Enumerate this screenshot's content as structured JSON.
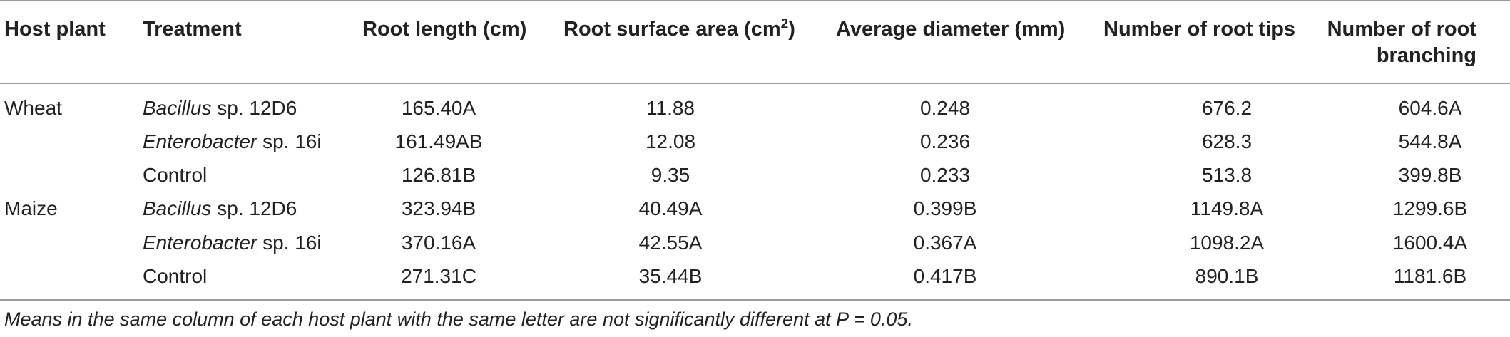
{
  "table": {
    "headers": {
      "host_plant": "Host plant",
      "treatment": "Treatment",
      "root_length": "Root length (cm)",
      "root_surface_area": "Root surface area (cm",
      "root_surface_area_sup": "2",
      "root_surface_area_close": ")",
      "average_diameter": "Average diameter (mm)",
      "number_of_root_tips": "Number of root tips",
      "number_of_root_branching_line1": "Number of root",
      "number_of_root_branching_line2": "branching"
    },
    "rows": [
      {
        "host": "Wheat",
        "genus": "Bacillus",
        "strain": " sp. 12D6",
        "treatment": "",
        "root_length": "165.40A",
        "surface_area": "11.88",
        "diameter": "0.248",
        "tips": "676.2",
        "branching": "604.6A"
      },
      {
        "host": "",
        "genus": "Enterobacter",
        "strain": " sp. 16i",
        "treatment": "",
        "root_length": "161.49AB",
        "surface_area": "12.08",
        "diameter": "0.236",
        "tips": "628.3",
        "branching": "544.8A"
      },
      {
        "host": "",
        "genus": "",
        "strain": "",
        "treatment": "Control",
        "root_length": "126.81B",
        "surface_area": "9.35",
        "diameter": "0.233",
        "tips": "513.8",
        "branching": "399.8B"
      },
      {
        "host": "Maize",
        "genus": "Bacillus",
        "strain": " sp. 12D6",
        "treatment": "",
        "root_length": "323.94B",
        "surface_area": "40.49A",
        "diameter": "0.399B",
        "tips": "1149.8A",
        "branching": "1299.6B"
      },
      {
        "host": "",
        "genus": "Enterobacter",
        "strain": " sp. 16i",
        "treatment": "",
        "root_length": "370.16A",
        "surface_area": "42.55A",
        "diameter": "0.367A",
        "tips": "1098.2A",
        "branching": "1600.4A"
      },
      {
        "host": "",
        "genus": "",
        "strain": "",
        "treatment": "Control",
        "root_length": "271.31C",
        "surface_area": "35.44B",
        "diameter": "0.417B",
        "tips": "890.1B",
        "branching": "1181.6B"
      }
    ],
    "footnote": "Means in the same column of each host plant with the same letter are not significantly different at P = 0.05."
  }
}
